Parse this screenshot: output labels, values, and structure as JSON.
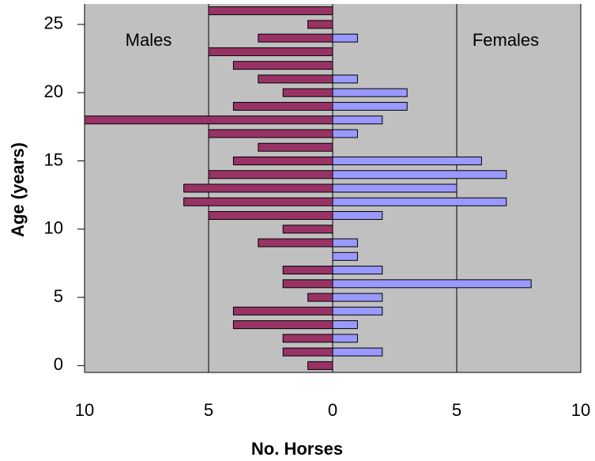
{
  "chart_data": {
    "type": "pyramid",
    "y_label": "Age (years)",
    "x_label": "No. Horses",
    "annotations": [
      "Males",
      "Females"
    ],
    "y": [
      0,
      1,
      2,
      3,
      4,
      5,
      6,
      7,
      8,
      9,
      10,
      11,
      12,
      13,
      14,
      15,
      16,
      17,
      18,
      19,
      20,
      21,
      22,
      23,
      24,
      25,
      26
    ],
    "series": [
      {
        "name": "Males",
        "color": "#993366",
        "side": "left",
        "values": [
          1,
          2,
          2,
          4,
          4,
          1,
          2,
          2,
          0,
          3,
          2,
          5,
          6,
          6,
          5,
          4,
          3,
          5,
          10,
          4,
          2,
          3,
          4,
          5,
          3,
          1,
          5
        ]
      },
      {
        "name": "Females",
        "color": "#9999ff",
        "side": "right",
        "values": [
          0,
          2,
          1,
          1,
          2,
          2,
          8,
          2,
          1,
          1,
          0,
          2,
          7,
          5,
          7,
          6,
          0,
          1,
          2,
          3,
          3,
          1,
          0,
          0,
          1,
          0,
          0
        ]
      }
    ],
    "xlim": [
      -10,
      10
    ],
    "xticks": [
      {
        "value": -10,
        "label": "10"
      },
      {
        "value": -5,
        "label": "5"
      },
      0,
      5,
      10
    ],
    "ylim": [
      -0.5,
      26.5
    ],
    "yticks": [
      0,
      5,
      10,
      15,
      20,
      25
    ],
    "grid": true,
    "background": "#c0c0c0"
  }
}
